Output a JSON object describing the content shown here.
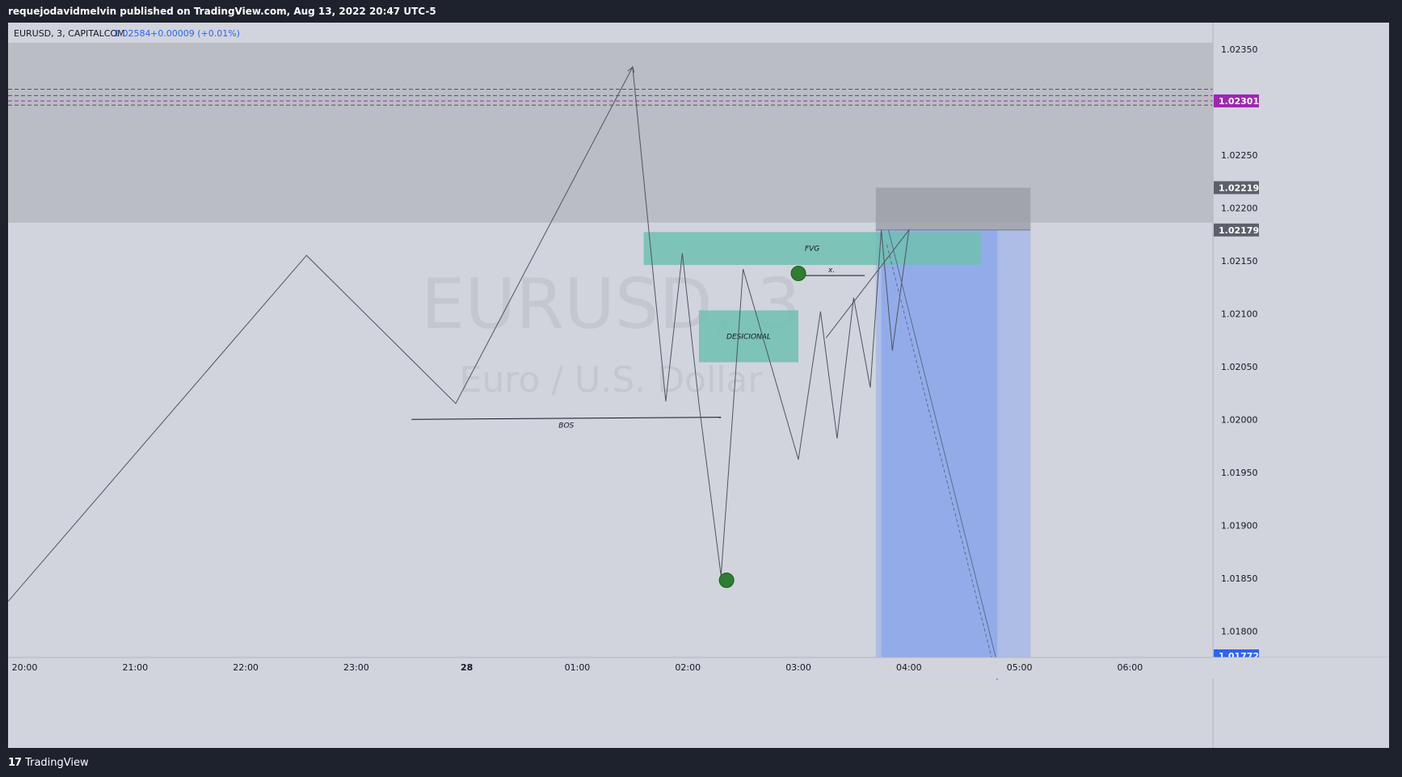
{
  "header": {
    "published_text": "requejodavidmelvin published on TradingView.com, Aug 13, 2022 20:47 UTC-5"
  },
  "legend": {
    "symbol_text": "EURUSD, 3, CAPITALCOM",
    "price": "1.02584",
    "change": "+0.00009 (+0.01%)"
  },
  "watermark": {
    "symbol": "EURUSD, 3",
    "description": "Euro / U.S. Dollar"
  },
  "footer": {
    "logo_glyph": "17",
    "brand": "TradingView"
  },
  "colors": {
    "background": "#d1d4dc",
    "supply_zone": "#bbbdc4",
    "fvg_zone": "#6fc0b0",
    "desicional_zone": "#6fc0b0",
    "reward_zone": "#a0b5ea",
    "reward_zone_dark": "#8ca7ea",
    "risk_zone": "#9b9ea6",
    "pivot_point": "#2e7d32",
    "price_label_magenta": "#9c27b0",
    "price_label_gray": "#5d606b",
    "price_label_blue": "#2962ff"
  },
  "chart_data": {
    "type": "line",
    "symbol": "EURUSD",
    "timeframe": "3",
    "exchange": "CAPITALCOM",
    "x_ticks": [
      "20:00",
      "21:00",
      "22:00",
      "23:00",
      "28",
      "01:00",
      "02:00",
      "03:00",
      "04:00",
      "05:00",
      "06:00"
    ],
    "y_ticks": [
      1.0235,
      1.0225,
      1.022,
      1.0215,
      1.021,
      1.0205,
      1.02,
      1.0195,
      1.019,
      1.0185,
      1.018
    ],
    "ylim": [
      1.01775,
      1.02375
    ],
    "xlim_hours": [
      -0.15,
      10.75
    ],
    "price_path_hours": [
      -0.15,
      2.55,
      3.9,
      5.5,
      5.8,
      5.95,
      6.1,
      6.3,
      6.5,
      7.0,
      7.2,
      7.35,
      7.5,
      7.65,
      7.75,
      7.85,
      8.0,
      7.25
    ],
    "price_path": [
      1.01828,
      1.02155,
      1.02015,
      1.02333,
      1.02017,
      1.02157,
      1.02015,
      1.01852,
      1.02142,
      1.01962,
      1.02102,
      1.01982,
      1.02115,
      1.0203,
      1.02179,
      1.02065,
      1.02179,
      1.02077
    ],
    "zones": [
      {
        "name": "supply-zone",
        "x": [
          -0.15,
          10.75
        ],
        "y": [
          1.02186,
          1.02356
        ]
      },
      {
        "name": "FVG",
        "label": "FVG",
        "x": [
          5.6,
          8.65
        ],
        "y": [
          1.02146,
          1.02177
        ]
      },
      {
        "name": "DESICIONAL",
        "label": "DESICIONAL",
        "x": [
          6.1,
          7.0
        ],
        "y": [
          1.02054,
          1.02103
        ]
      }
    ],
    "position": {
      "type": "short",
      "x": [
        7.7,
        9.1
      ],
      "entry": 1.02179,
      "stop": 1.02219,
      "target": 1.01772,
      "dark_reward_x": [
        7.75,
        8.8
      ]
    },
    "horizontal_lines": [
      {
        "name": "dashed-level-1",
        "value": 1.02312,
        "style": "dashed",
        "color": "#50535e"
      },
      {
        "name": "dashed-level-2",
        "value": 1.02306,
        "style": "dashed",
        "color": "#50535e"
      },
      {
        "name": "dashed-level-3",
        "value": 1.02301,
        "style": "dashed",
        "color": "#9c27b0"
      },
      {
        "name": "dashed-level-4",
        "value": 1.02297,
        "style": "dashed",
        "color": "#50535e"
      }
    ],
    "annotations": [
      {
        "name": "bos-line",
        "label": "BOS",
        "x": [
          3.5,
          6.3
        ],
        "y": [
          1.02,
          1.02002
        ]
      },
      {
        "name": "x-line",
        "label": "x.",
        "x": [
          7.0,
          7.6
        ],
        "y": [
          1.02136,
          1.02136
        ]
      }
    ],
    "pivots": [
      {
        "name": "pivot-low",
        "x": 6.35,
        "y": 1.01848
      },
      {
        "name": "pivot-high",
        "x": 7.0,
        "y": 1.02138
      }
    ],
    "projection": {
      "x": [
        7.8,
        8.8
      ],
      "y": [
        1.02179,
        1.01772
      ]
    },
    "price_labels": [
      {
        "value": "1.02301",
        "color": "magenta"
      },
      {
        "value": "1.02219",
        "color": "gray"
      },
      {
        "value": "1.02179",
        "color": "gray"
      },
      {
        "value": "1.01772",
        "color": "blue"
      }
    ]
  }
}
